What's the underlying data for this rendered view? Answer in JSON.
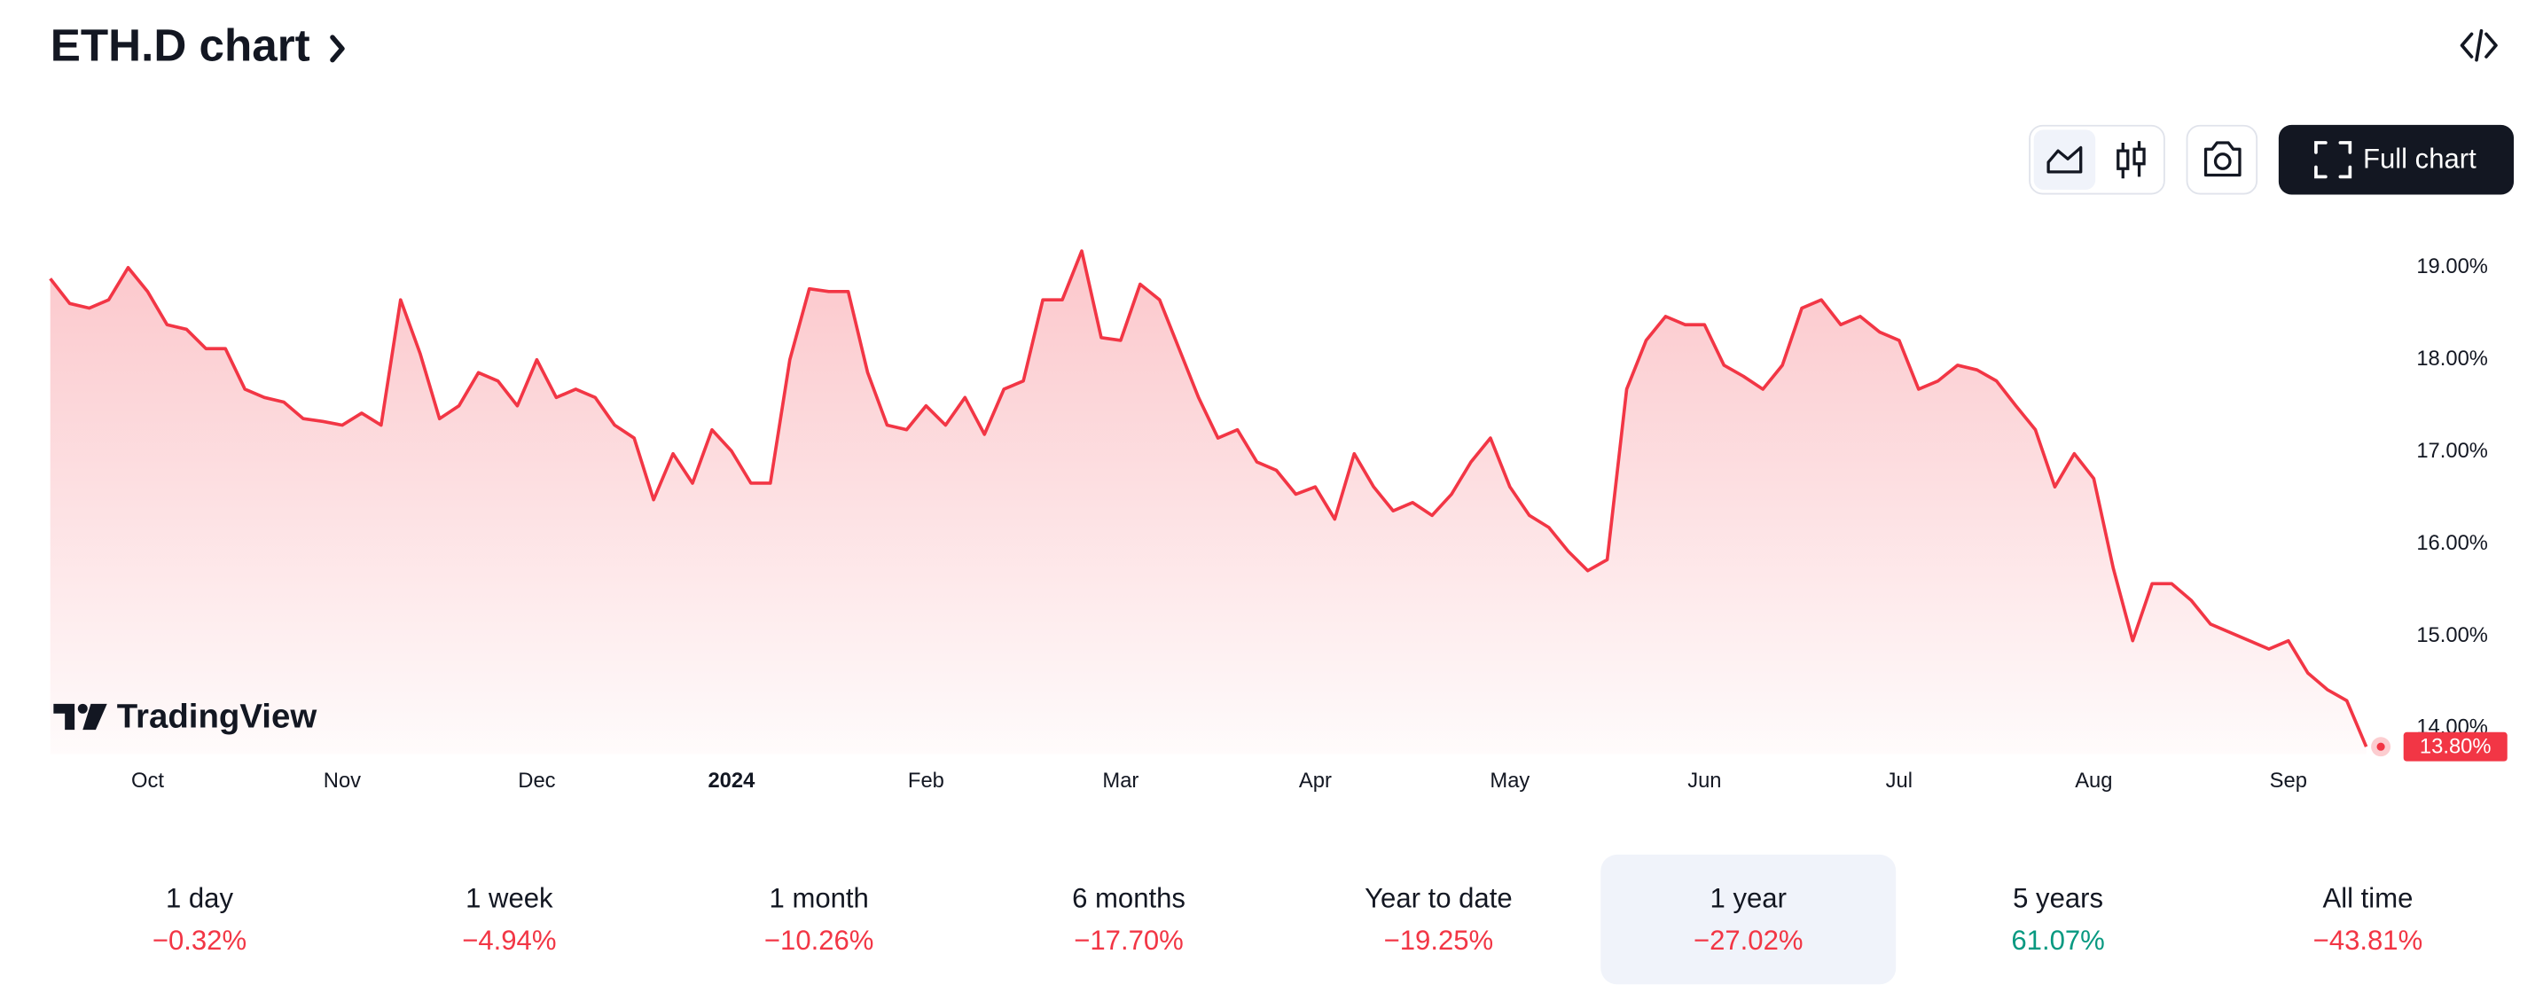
{
  "header": {
    "title": "ETH.D chart"
  },
  "toolbar": {
    "full_chart": "Full chart"
  },
  "watermark": "TradingView",
  "chart_data": {
    "type": "area",
    "color": "#f23645",
    "categories": [
      null,
      null,
      null,
      null,
      null,
      "Oct",
      null,
      null,
      null,
      null,
      null,
      null,
      null,
      null,
      null,
      "Nov",
      null,
      null,
      null,
      null,
      null,
      null,
      null,
      null,
      null,
      "Dec",
      null,
      null,
      null,
      null,
      null,
      null,
      null,
      null,
      null,
      "2024",
      null,
      null,
      null,
      null,
      null,
      null,
      null,
      null,
      null,
      "Feb",
      null,
      null,
      null,
      null,
      null,
      null,
      null,
      null,
      null,
      "Mar",
      null,
      null,
      null,
      null,
      null,
      null,
      null,
      null,
      null,
      "Apr",
      null,
      null,
      null,
      null,
      null,
      null,
      null,
      null,
      null,
      "May",
      null,
      null,
      null,
      null,
      null,
      null,
      null,
      null,
      null,
      "Jun",
      null,
      null,
      null,
      null,
      null,
      null,
      null,
      null,
      null,
      "Jul",
      null,
      null,
      null,
      null,
      null,
      null,
      null,
      null,
      null,
      "Aug",
      null,
      null,
      null,
      null,
      null,
      null,
      null,
      null,
      null,
      "Sep",
      null,
      null,
      null,
      null
    ],
    "values": [
      18.88,
      18.61,
      18.56,
      18.65,
      19.0,
      18.74,
      18.38,
      18.33,
      18.12,
      18.12,
      17.68,
      17.59,
      17.54,
      17.36,
      17.33,
      17.29,
      17.42,
      17.29,
      18.65,
      18.07,
      17.36,
      17.5,
      17.86,
      17.77,
      17.5,
      18.0,
      17.59,
      17.68,
      17.59,
      17.29,
      17.15,
      16.48,
      16.98,
      16.66,
      17.24,
      17.01,
      16.66,
      16.66,
      18.0,
      18.77,
      18.74,
      18.74,
      17.86,
      17.29,
      17.24,
      17.5,
      17.29,
      17.59,
      17.19,
      17.68,
      17.77,
      18.65,
      18.65,
      19.18,
      18.24,
      18.21,
      18.82,
      18.65,
      18.12,
      17.59,
      17.15,
      17.24,
      16.89,
      16.8,
      16.54,
      16.62,
      16.27,
      16.98,
      16.62,
      16.36,
      16.45,
      16.31,
      16.54,
      16.89,
      17.15,
      16.62,
      16.31,
      16.18,
      15.92,
      15.71,
      15.83,
      17.68,
      18.21,
      18.47,
      18.38,
      18.38,
      17.94,
      17.82,
      17.68,
      17.94,
      18.56,
      18.65,
      18.38,
      18.47,
      18.3,
      18.21,
      17.68,
      17.77,
      17.94,
      17.89,
      17.77,
      17.5,
      17.24,
      16.62,
      16.98,
      16.71,
      15.74,
      14.95,
      15.57,
      15.57,
      15.39,
      15.13,
      15.04,
      14.95,
      14.86,
      14.95,
      14.6,
      14.42,
      14.3,
      13.8
    ],
    "value_labels_last": "13.80%",
    "ylim": [
      13.72,
      19.44
    ],
    "yticks": [
      {
        "value": 14,
        "label": "14.00%"
      },
      {
        "value": 15,
        "label": "15.00%"
      },
      {
        "value": 16,
        "label": "16.00%"
      },
      {
        "value": 17,
        "label": "17.00%"
      },
      {
        "value": 18,
        "label": "18.00%"
      },
      {
        "value": 19,
        "label": "19.00%"
      }
    ],
    "grid": false
  },
  "periods": [
    {
      "label": "1 day",
      "change": "−0.32%",
      "color": "#f23645"
    },
    {
      "label": "1 week",
      "change": "−4.94%",
      "color": "#f23645"
    },
    {
      "label": "1 month",
      "change": "−10.26%",
      "color": "#f23645"
    },
    {
      "label": "6 months",
      "change": "−17.70%",
      "color": "#f23645"
    },
    {
      "label": "Year to date",
      "change": "−19.25%",
      "color": "#f23645"
    },
    {
      "label": "1 year",
      "change": "−27.02%",
      "color": "#f23645",
      "selected": true
    },
    {
      "label": "5 years",
      "change": "61.07%",
      "color": "#089981"
    },
    {
      "label": "All time",
      "change": "−43.81%",
      "color": "#f23645"
    }
  ]
}
